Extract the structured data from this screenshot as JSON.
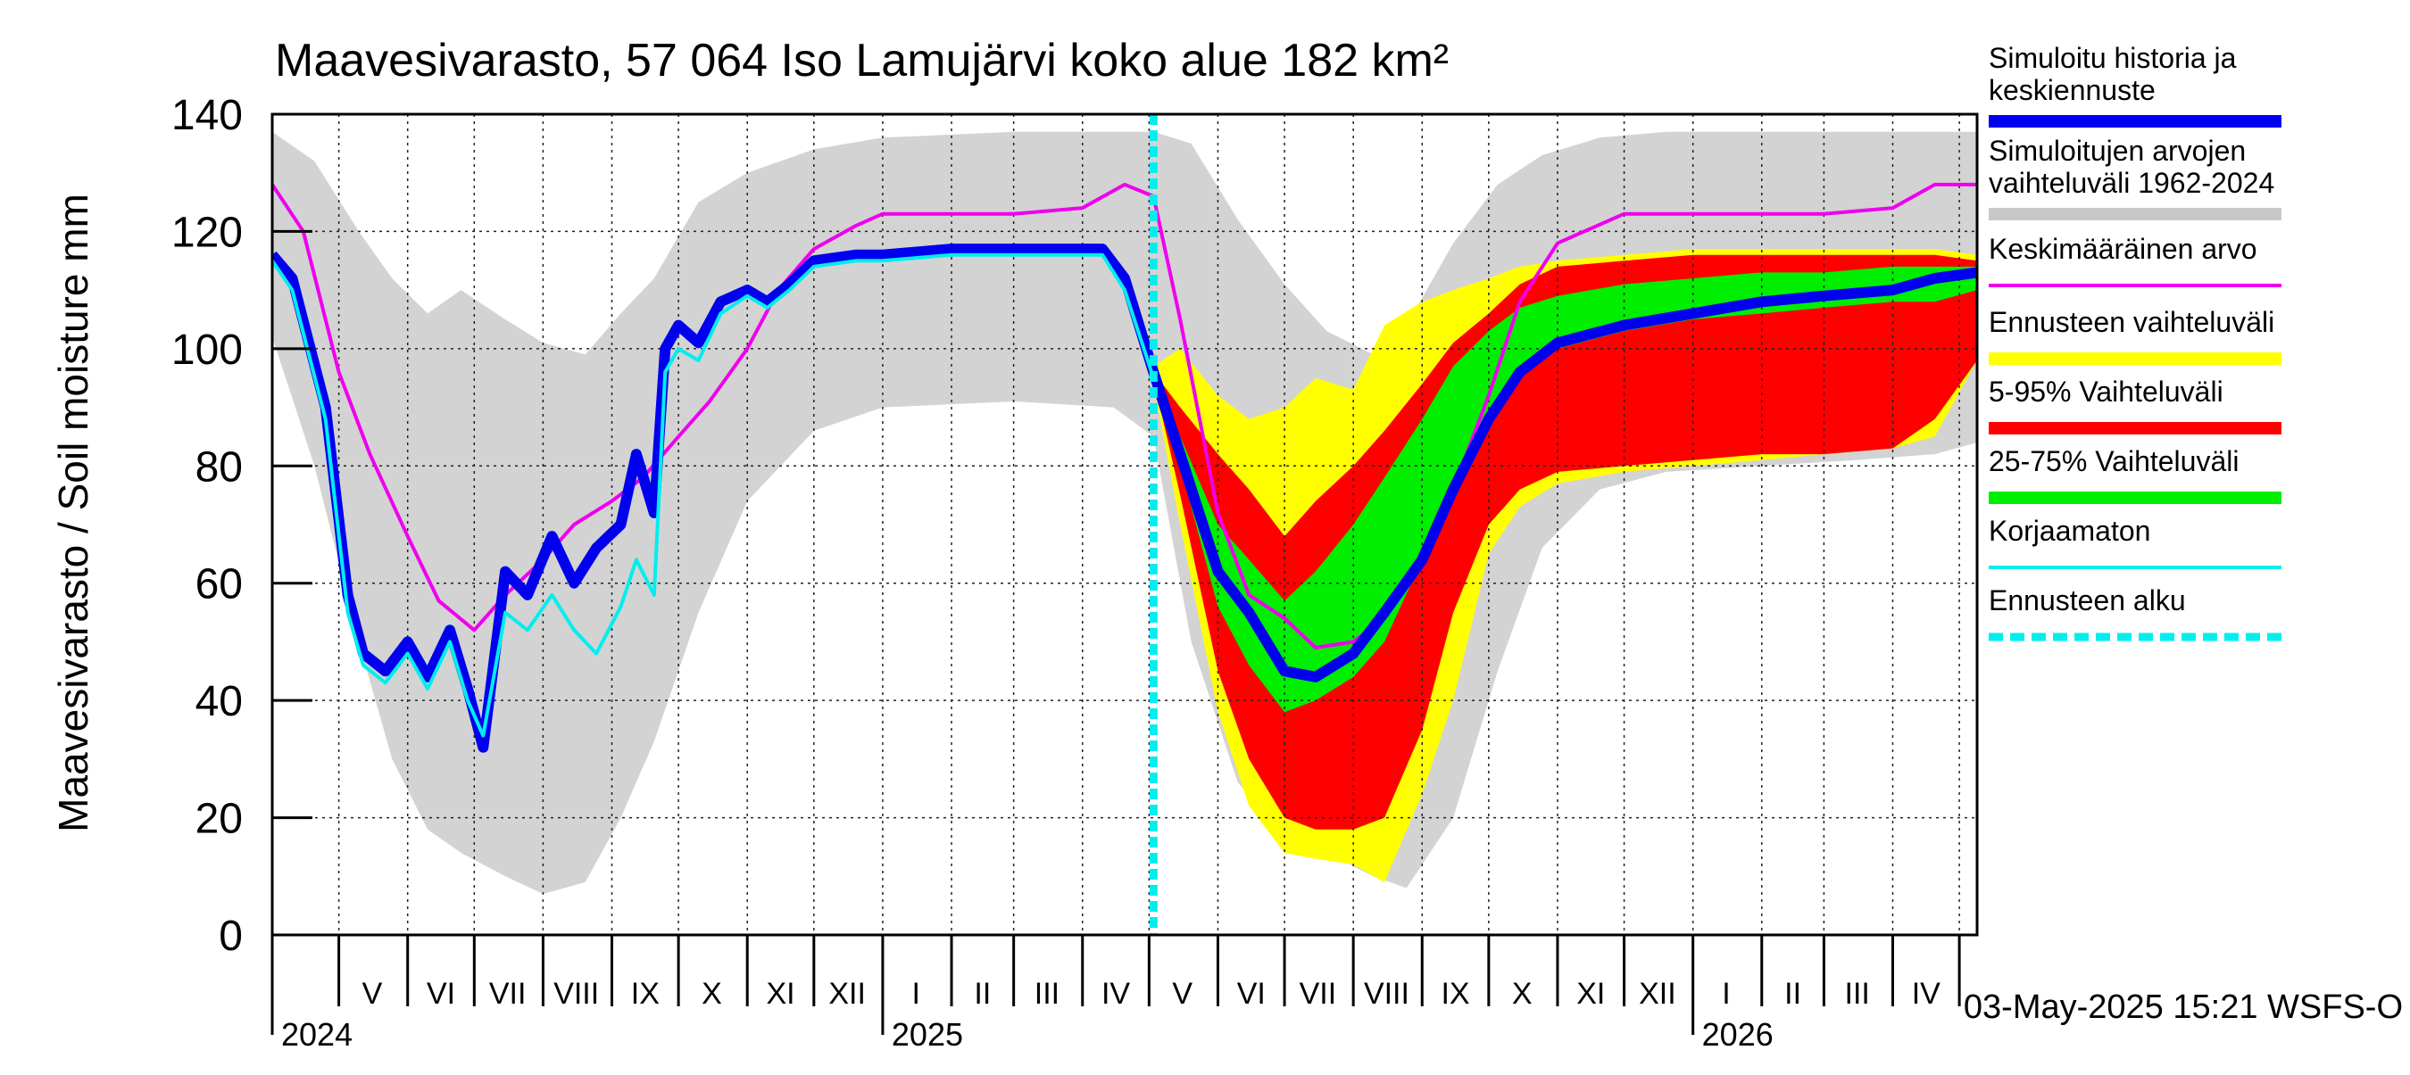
{
  "chart_data": {
    "type": "area",
    "title": "Maavesivarasto, 57 064 Iso Lamujärvi koko alue 182 km²",
    "ylabel": "Maavesivarasto / Soil moisture   mm",
    "ylim": [
      0,
      140
    ],
    "y_ticks": [
      0,
      20,
      40,
      60,
      80,
      100,
      120,
      140
    ],
    "x_range": [
      "2024-04-01",
      "2026-05-09"
    ],
    "forecast_start": "2025-05-03",
    "grid": true,
    "legend_position": "right",
    "timestamp": "03-May-2025 15:21 WSFS-O",
    "month_labels": [
      {
        "label": "V",
        "date": "2024-05-16"
      },
      {
        "label": "VI",
        "date": "2024-06-16"
      },
      {
        "label": "VII",
        "date": "2024-07-16"
      },
      {
        "label": "VIII",
        "date": "2024-08-16"
      },
      {
        "label": "IX",
        "date": "2024-09-16"
      },
      {
        "label": "X",
        "date": "2024-10-16"
      },
      {
        "label": "XI",
        "date": "2024-11-16"
      },
      {
        "label": "XII",
        "date": "2024-12-16"
      },
      {
        "label": "I",
        "date": "2025-01-16"
      },
      {
        "label": "II",
        "date": "2025-02-15"
      },
      {
        "label": "III",
        "date": "2025-03-16"
      },
      {
        "label": "IV",
        "date": "2025-04-16"
      },
      {
        "label": "V",
        "date": "2025-05-16"
      },
      {
        "label": "VI",
        "date": "2025-06-16"
      },
      {
        "label": "VII",
        "date": "2025-07-16"
      },
      {
        "label": "VIII",
        "date": "2025-08-16"
      },
      {
        "label": "IX",
        "date": "2025-09-16"
      },
      {
        "label": "X",
        "date": "2025-10-16"
      },
      {
        "label": "XI",
        "date": "2025-11-16"
      },
      {
        "label": "XII",
        "date": "2025-12-16"
      },
      {
        "label": "I",
        "date": "2026-01-16"
      },
      {
        "label": "II",
        "date": "2026-02-15"
      },
      {
        "label": "III",
        "date": "2026-03-16"
      },
      {
        "label": "IV",
        "date": "2026-04-16"
      }
    ],
    "month_boundaries": [
      "2024-05-01",
      "2024-06-01",
      "2024-07-01",
      "2024-08-01",
      "2024-09-01",
      "2024-10-01",
      "2024-11-01",
      "2024-12-01",
      "2025-01-01",
      "2025-02-01",
      "2025-03-01",
      "2025-04-01",
      "2025-05-01",
      "2025-06-01",
      "2025-07-01",
      "2025-08-01",
      "2025-09-01",
      "2025-10-01",
      "2025-11-01",
      "2025-12-01",
      "2026-01-01",
      "2026-02-01",
      "2026-03-01",
      "2026-04-01",
      "2026-05-01"
    ],
    "year_labels": [
      {
        "label": "2024",
        "date": "2024-04-01"
      },
      {
        "label": "2025",
        "date": "2025-01-01"
      },
      {
        "label": "2026",
        "date": "2026-01-01"
      }
    ],
    "legend": [
      {
        "label": "Simuloitu historia ja keskiennuste",
        "color": "#0000ee",
        "style": "thick"
      },
      {
        "label": "Simuloitujen arvojen vaihteluväli 1962-2024",
        "color": "#c8c8c8",
        "style": "thick"
      },
      {
        "label": "Keskimääräinen arvo",
        "color": "#ee00ee",
        "style": "thin"
      },
      {
        "label": "Ennusteen vaihteluväli",
        "color": "#ffff00",
        "style": "thick"
      },
      {
        "label": "5-95% Vaihteluväli",
        "color": "#ff0000",
        "style": "thick"
      },
      {
        "label": "25-75% Vaihteluväli",
        "color": "#00ee00",
        "style": "thick"
      },
      {
        "label": "Korjaamaton",
        "color": "#00eeee",
        "style": "thin"
      },
      {
        "label": "Ennusteen alku",
        "color": "#00eeee",
        "style": "dashed"
      }
    ],
    "series": {
      "historical_range": {
        "x": [
          "2024-04-01",
          "2024-04-20",
          "2024-05-10",
          "2024-05-25",
          "2024-06-10",
          "2024-06-25",
          "2024-07-15",
          "2024-08-01",
          "2024-08-20",
          "2024-09-05",
          "2024-09-20",
          "2024-10-10",
          "2024-11-01",
          "2024-12-01",
          "2025-01-01",
          "2025-03-01",
          "2025-04-15",
          "2025-05-03",
          "2025-05-20",
          "2025-06-10",
          "2025-07-01",
          "2025-07-20",
          "2025-08-10",
          "2025-08-25",
          "2025-09-15",
          "2025-10-05",
          "2025-10-25",
          "2025-11-20",
          "2025-12-20",
          "2026-02-01",
          "2026-03-15",
          "2026-04-20",
          "2026-05-09"
        ],
        "upper": [
          137,
          132,
          120,
          112,
          106,
          110,
          105,
          101,
          99,
          106,
          112,
          125,
          130,
          134,
          136,
          137,
          137,
          137,
          135,
          122,
          111,
          103,
          99,
          104,
          118,
          128,
          133,
          136,
          137,
          137,
          137,
          137,
          137
        ],
        "lower": [
          102,
          80,
          50,
          30,
          18,
          14,
          10,
          7,
          9,
          20,
          33,
          55,
          74,
          86,
          90,
          91,
          90,
          85,
          50,
          26,
          17,
          14,
          10,
          8,
          20,
          45,
          66,
          76,
          79,
          80,
          81,
          82,
          84
        ]
      },
      "forecast_full": {
        "x": [
          "2025-05-03",
          "2025-05-15",
          "2025-06-01",
          "2025-06-15",
          "2025-07-01",
          "2025-07-15",
          "2025-08-01",
          "2025-08-15",
          "2025-09-01",
          "2025-09-15",
          "2025-10-01",
          "2025-10-15",
          "2025-11-01",
          "2025-12-01",
          "2026-01-01",
          "2026-02-01",
          "2026-03-01",
          "2026-04-01",
          "2026-04-20",
          "2026-05-09"
        ],
        "upper": [
          97,
          100,
          92,
          88,
          90,
          95,
          93,
          104,
          108,
          110,
          112,
          114,
          115,
          116,
          117,
          117,
          117,
          117,
          117,
          116
        ],
        "lower": [
          94,
          70,
          38,
          22,
          14,
          13,
          12,
          9,
          24,
          40,
          65,
          73,
          77,
          79,
          80,
          81,
          82,
          83,
          85,
          98
        ]
      },
      "forecast_5_95": {
        "x": [
          "2025-05-03",
          "2025-05-15",
          "2025-06-01",
          "2025-06-15",
          "2025-07-01",
          "2025-07-15",
          "2025-08-01",
          "2025-08-15",
          "2025-09-01",
          "2025-09-15",
          "2025-10-01",
          "2025-10-15",
          "2025-11-01",
          "2025-12-01",
          "2026-01-01",
          "2026-02-01",
          "2026-03-01",
          "2026-04-01",
          "2026-04-20",
          "2026-05-09"
        ],
        "upper": [
          96,
          90,
          82,
          76,
          68,
          74,
          80,
          86,
          94,
          101,
          106,
          111,
          114,
          115,
          116,
          116,
          116,
          116,
          116,
          115
        ],
        "lower": [
          95,
          75,
          45,
          30,
          20,
          18,
          18,
          20,
          35,
          55,
          70,
          76,
          79,
          80,
          81,
          82,
          82,
          83,
          88,
          98
        ]
      },
      "forecast_25_75": {
        "x": [
          "2025-05-03",
          "2025-05-15",
          "2025-06-01",
          "2025-06-15",
          "2025-07-01",
          "2025-07-15",
          "2025-08-01",
          "2025-08-15",
          "2025-09-01",
          "2025-09-15",
          "2025-10-01",
          "2025-10-15",
          "2025-11-01",
          "2025-12-01",
          "2026-01-01",
          "2026-02-01",
          "2026-03-01",
          "2026-04-01",
          "2026-04-20",
          "2026-05-09"
        ],
        "upper": [
          95,
          85,
          70,
          64,
          57,
          62,
          70,
          78,
          88,
          97,
          103,
          107,
          109,
          111,
          112,
          113,
          113,
          114,
          114,
          114
        ],
        "lower": [
          95,
          80,
          56,
          46,
          38,
          40,
          44,
          50,
          64,
          76,
          88,
          95,
          100,
          103,
          105,
          106,
          107,
          108,
          108,
          110
        ]
      },
      "simulated_mean": {
        "x": [
          "2024-04-01",
          "2024-04-10",
          "2024-04-25",
          "2024-05-05",
          "2024-05-12",
          "2024-05-22",
          "2024-06-01",
          "2024-06-10",
          "2024-06-20",
          "2024-06-28",
          "2024-07-05",
          "2024-07-15",
          "2024-07-25",
          "2024-08-05",
          "2024-08-15",
          "2024-08-25",
          "2024-09-05",
          "2024-09-12",
          "2024-09-20",
          "2024-09-25",
          "2024-10-01",
          "2024-10-10",
          "2024-10-20",
          "2024-11-01",
          "2024-11-10",
          "2024-11-20",
          "2024-12-01",
          "2024-12-20",
          "2025-01-01",
          "2025-02-01",
          "2025-03-01",
          "2025-04-01",
          "2025-04-10",
          "2025-04-20",
          "2025-05-03",
          "2025-05-15",
          "2025-06-01",
          "2025-06-15",
          "2025-07-01",
          "2025-07-15",
          "2025-08-01",
          "2025-08-15",
          "2025-09-01",
          "2025-09-15",
          "2025-10-01",
          "2025-10-15",
          "2025-11-01",
          "2025-12-01",
          "2026-01-01",
          "2026-02-01",
          "2026-03-01",
          "2026-04-01",
          "2026-04-20",
          "2026-05-09"
        ],
        "values": [
          116,
          112,
          90,
          58,
          48,
          45,
          50,
          44,
          52,
          42,
          32,
          62,
          58,
          68,
          60,
          66,
          70,
          82,
          72,
          100,
          104,
          101,
          108,
          110,
          108,
          111,
          115,
          116,
          116,
          117,
          117,
          117,
          117,
          112,
          96,
          82,
          62,
          55,
          45,
          44,
          48,
          55,
          64,
          76,
          88,
          96,
          101,
          104,
          106,
          108,
          109,
          110,
          112,
          113
        ]
      },
      "uncorrected": {
        "x": [
          "2024-04-01",
          "2024-04-10",
          "2024-04-25",
          "2024-05-05",
          "2024-05-12",
          "2024-05-22",
          "2024-06-01",
          "2024-06-10",
          "2024-06-20",
          "2024-06-28",
          "2024-07-05",
          "2024-07-15",
          "2024-07-25",
          "2024-08-05",
          "2024-08-15",
          "2024-08-25",
          "2024-09-05",
          "2024-09-12",
          "2024-09-20",
          "2024-09-25",
          "2024-10-01",
          "2024-10-10",
          "2024-10-20",
          "2024-11-01",
          "2024-11-10",
          "2024-11-20",
          "2024-12-01",
          "2024-12-20",
          "2025-01-01",
          "2025-02-01",
          "2025-03-01",
          "2025-04-01",
          "2025-04-10",
          "2025-04-20",
          "2025-05-03"
        ],
        "values": [
          115,
          110,
          88,
          55,
          46,
          43,
          48,
          42,
          50,
          40,
          34,
          55,
          52,
          58,
          52,
          48,
          56,
          64,
          58,
          96,
          100,
          98,
          106,
          109,
          107,
          110,
          114,
          115,
          115,
          116,
          116,
          116,
          116,
          110,
          95
        ]
      },
      "average": {
        "x": [
          "2024-04-01",
          "2024-04-15",
          "2024-05-01",
          "2024-05-15",
          "2024-06-01",
          "2024-06-15",
          "2024-07-01",
          "2024-07-15",
          "2024-08-01",
          "2024-08-15",
          "2024-09-01",
          "2024-09-15",
          "2024-10-01",
          "2024-10-15",
          "2024-11-01",
          "2024-11-15",
          "2024-12-01",
          "2024-12-20",
          "2025-01-01",
          "2025-03-01",
          "2025-04-01",
          "2025-04-20",
          "2025-05-03",
          "2025-05-15",
          "2025-06-01",
          "2025-06-15",
          "2025-07-01",
          "2025-07-15",
          "2025-08-01",
          "2025-08-15",
          "2025-09-01",
          "2025-09-15",
          "2025-10-01",
          "2025-10-15",
          "2025-11-01",
          "2025-12-01",
          "2026-01-01",
          "2026-03-01",
          "2026-04-01",
          "2026-04-20",
          "2026-05-09"
        ],
        "values": [
          128,
          120,
          96,
          82,
          68,
          57,
          52,
          58,
          64,
          70,
          74,
          78,
          85,
          91,
          100,
          110,
          117,
          121,
          123,
          123,
          124,
          128,
          126,
          105,
          72,
          58,
          54,
          49,
          50,
          54,
          63,
          76,
          92,
          108,
          118,
          123,
          123,
          123,
          124,
          128,
          128
        ]
      }
    }
  }
}
